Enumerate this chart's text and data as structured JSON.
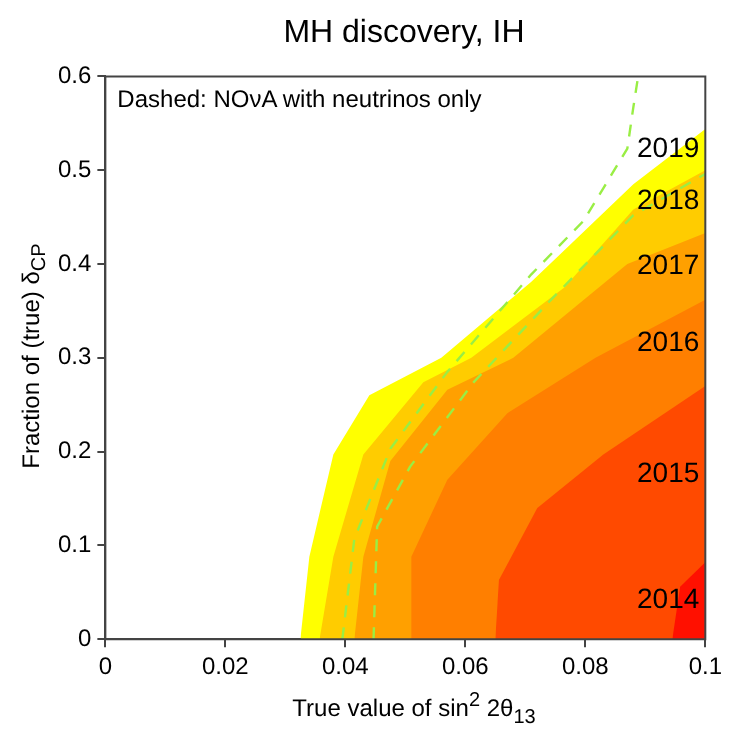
{
  "chart_data": {
    "type": "area",
    "title": "MH discovery, IH",
    "xlabel": "True value of sin$^{2}$ 2θ$_{13}$",
    "ylabel": "Fraction of (true) δ$_{CP}$",
    "annotations": [
      "Dashed: NOνA with neutrinos only"
    ],
    "xlim": [
      0,
      0.1
    ],
    "xticks": [
      0,
      0.02,
      0.04,
      0.06,
      0.08,
      0.1
    ],
    "ylim": [
      0,
      0.6
    ],
    "yticks": [
      0,
      0.1,
      0.2,
      0.3,
      0.4,
      0.5,
      0.6
    ],
    "grid": false,
    "legend": false,
    "marker": "none",
    "series": [
      {
        "name": "2019",
        "color": "#ffff00",
        "x": [
          0.0325,
          0.034,
          0.038,
          0.044,
          0.056,
          0.071,
          0.088,
          0.1
        ],
        "values": [
          0,
          0.088,
          0.197,
          0.26,
          0.3,
          0.381,
          0.485,
          0.544
        ]
      },
      {
        "name": "2018",
        "color": "#ffcc00",
        "x": [
          0.0357,
          0.038,
          0.043,
          0.053,
          0.061,
          0.0765,
          0.088,
          0.1
        ],
        "values": [
          0,
          0.088,
          0.197,
          0.274,
          0.3,
          0.375,
          0.458,
          0.5
        ]
      },
      {
        "name": "2017",
        "color": "#ffa000",
        "x": [
          0.0415,
          0.043,
          0.0475,
          0.057,
          0.068,
          0.087,
          0.1
        ],
        "values": [
          0,
          0.088,
          0.19,
          0.266,
          0.3,
          0.4,
          0.433
        ]
      },
      {
        "name": "2016",
        "color": "#ff7f00",
        "x": [
          0.0508,
          0.051,
          0.057,
          0.067,
          0.0817,
          0.1
        ],
        "values": [
          0,
          0.088,
          0.17,
          0.241,
          0.3,
          0.362
        ]
      },
      {
        "name": "2015",
        "color": "#ff4a00",
        "x": [
          0.065,
          0.0656,
          0.072,
          0.083,
          0.1
        ],
        "values": [
          0,
          0.063,
          0.14,
          0.197,
          0.27
        ]
      },
      {
        "name": "2014",
        "color": "#ff1000",
        "x": [
          0.0945,
          0.0958,
          0.1
        ],
        "values": [
          0,
          0.056,
          0.082
        ]
      },
      {
        "type": "line",
        "line_style": "dashed",
        "color": "#99ee44",
        "x": [
          0.0395,
          0.0415,
          0.0475,
          0.057,
          0.071,
          0.0797,
          0.087,
          0.088,
          0.0888
        ],
        "values": [
          0,
          0.107,
          0.203,
          0.285,
          0.389,
          0.446,
          0.523,
          0.567,
          0.6
        ]
      },
      {
        "type": "line",
        "line_style": "dashed",
        "color": "#99ee44",
        "x": [
          0.0447,
          0.0453,
          0.0508,
          0.0614,
          0.0743,
          0.088,
          0.1
        ],
        "values": [
          0,
          0.12,
          0.184,
          0.274,
          0.362,
          0.452,
          0.496
        ]
      }
    ]
  }
}
